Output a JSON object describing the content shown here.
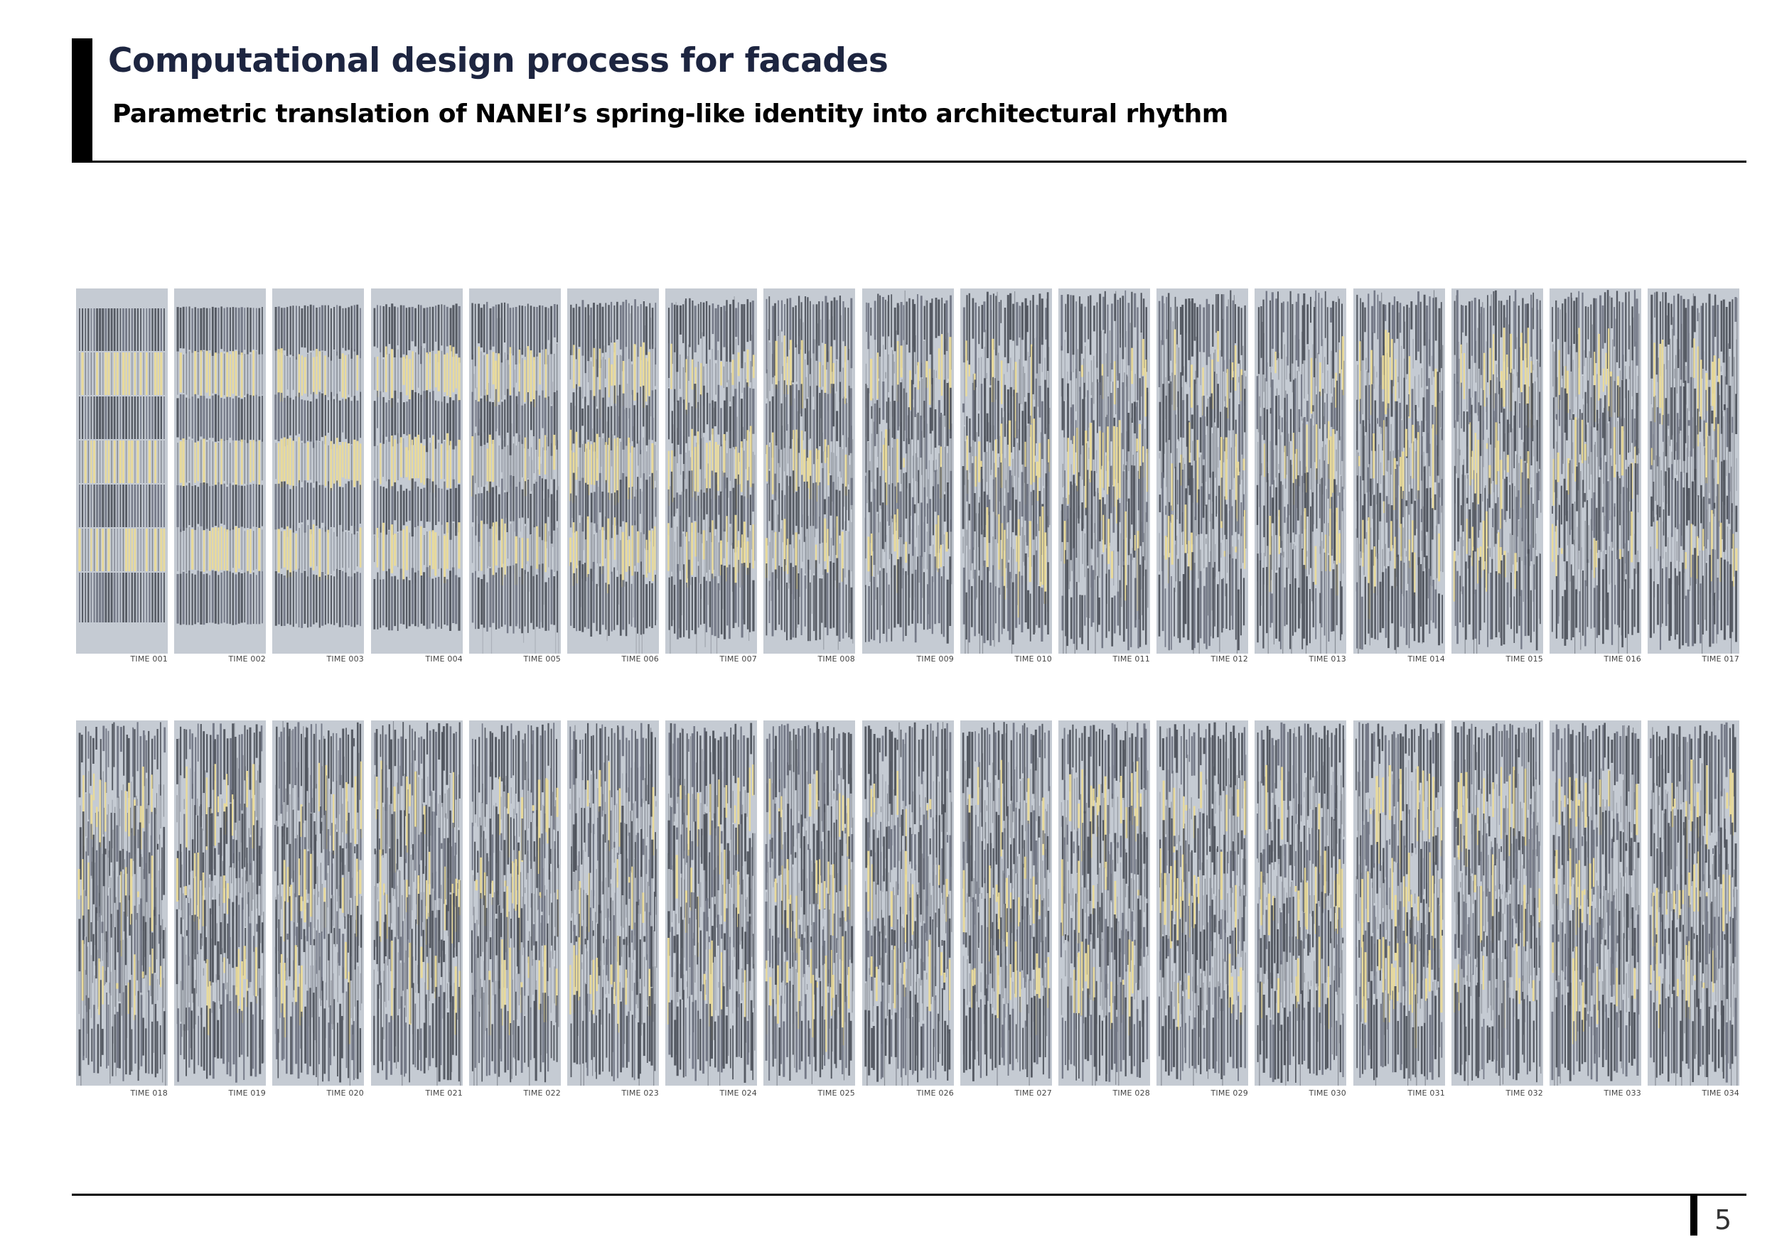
{
  "header": {
    "title": "Computational design process for facades",
    "subtitle": "Parametric translation of NANEI’s spring-like identity into architectural rhythm"
  },
  "footer": {
    "page_number": "5"
  },
  "colors": {
    "panel_background": "#c5cbd3",
    "dark_bar": "#4b4f58",
    "mid_bar": "#6d7280",
    "yellow_bar": "#eadb9a",
    "title_color": "#1d2540"
  },
  "frames": {
    "row_1": [
      "TIME 001",
      "TIME 002",
      "TIME 003",
      "TIME 004",
      "TIME 005",
      "TIME 006",
      "TIME 007",
      "TIME 008",
      "TIME 009",
      "TIME 010",
      "TIME 011",
      "TIME 012",
      "TIME 013",
      "TIME 014",
      "TIME 015",
      "TIME 016",
      "TIME 017"
    ],
    "row_2": [
      "TIME 018",
      "TIME 019",
      "TIME 020",
      "TIME 021",
      "TIME 022",
      "TIME 023",
      "TIME 024",
      "TIME 025",
      "TIME 026",
      "TIME 027",
      "TIME 028",
      "TIME 029",
      "TIME 030",
      "TIME 031",
      "TIME 032",
      "TIME 033",
      "TIME 034"
    ]
  }
}
